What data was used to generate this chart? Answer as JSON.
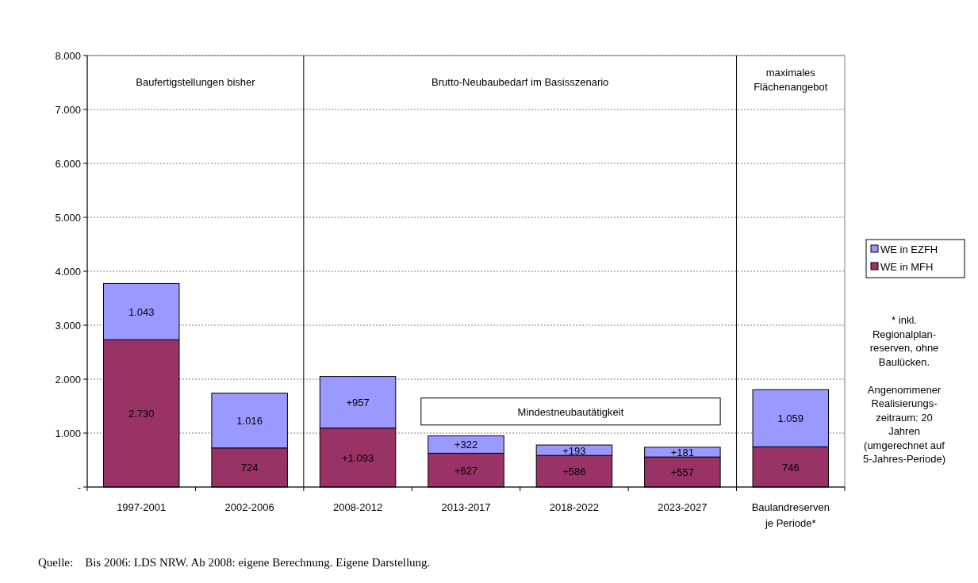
{
  "chart_data": {
    "type": "bar",
    "stacked": true,
    "categories": [
      "1997-2001",
      "2002-2006",
      "2008-2012",
      "2013-2017",
      "2018-2022",
      "2023-2027",
      "Baulandreserven je Periode*"
    ],
    "series": [
      {
        "name": "WE in MFH",
        "color": "#993366",
        "values": [
          2730,
          724,
          1093,
          627,
          586,
          557,
          746
        ],
        "value_labels": [
          "2.730",
          "724",
          "+1.093",
          "+627",
          "+586",
          "+557",
          "746"
        ]
      },
      {
        "name": "WE in EZFH",
        "color": "#9999ff",
        "values": [
          1043,
          1016,
          957,
          322,
          193,
          181,
          1059
        ],
        "value_labels": [
          "1.043",
          "1.016",
          "+957",
          "+322",
          "+193",
          "+181",
          "1.059"
        ]
      }
    ],
    "ylim": [
      0,
      8000
    ],
    "yticks": [
      {
        "value": 0,
        "label": "-"
      },
      {
        "value": 1000,
        "label": "1.000"
      },
      {
        "value": 2000,
        "label": "2.000"
      },
      {
        "value": 3000,
        "label": "3.000"
      },
      {
        "value": 4000,
        "label": "4.000"
      },
      {
        "value": 5000,
        "label": "5.000"
      },
      {
        "value": 6000,
        "label": "6.000"
      },
      {
        "value": 7000,
        "label": "7.000"
      },
      {
        "value": 8000,
        "label": "8.000"
      }
    ],
    "grid": "y",
    "legend": "right",
    "annotations": [
      "Baufertigstellungen bisher",
      "Brutto-Neubaubedarf im Basisszenario",
      "maximales\nFlächenangebot",
      "Mindestneubautätigkeit",
      "* inkl.\nRegionalplan-\nreserven, ohne\nBaulücken.\n\nAngenommener\nRealisierungs-\nzeitraum: 20\nJahren\n(umgerechnet auf\n5-Jahres-Periode)",
      "Quelle:    Bis 2006: LDS NRW. Ab 2008: eigene Berechnung. Eigene Darstellung."
    ]
  }
}
